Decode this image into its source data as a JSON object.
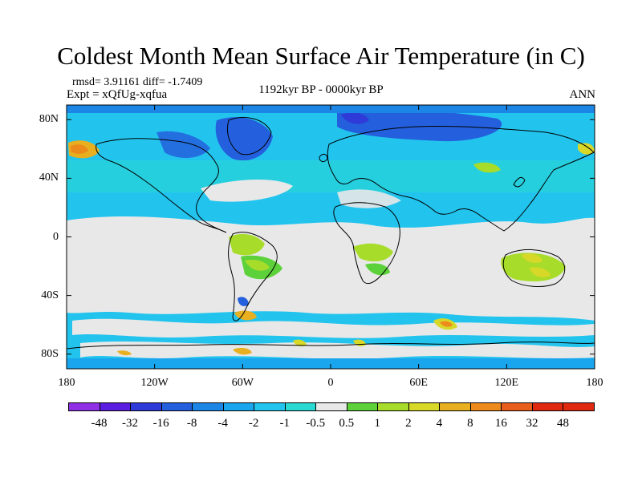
{
  "title": "Coldest Month Mean Surface Air Temperature (in C)",
  "stats": {
    "rmsd_line": "rmsd= 3.91161 diff= -1.7409",
    "experiment": "Expt = xQfUg-xqfua",
    "period": "1192kyr BP - 0000kyr BP",
    "season": "ANN"
  },
  "map": {
    "projection": "cylindrical equidistant",
    "lon_range": [
      -180,
      180
    ],
    "lat_range": [
      -90,
      90
    ],
    "lat_ticks": [
      {
        "value": 80,
        "label": "80N"
      },
      {
        "value": 40,
        "label": "40N"
      },
      {
        "value": 0,
        "label": "0"
      },
      {
        "value": -40,
        "label": "40S"
      },
      {
        "value": -80,
        "label": "80S"
      }
    ],
    "lon_ticks": [
      {
        "value": -180,
        "label": "180"
      },
      {
        "value": -120,
        "label": "120W"
      },
      {
        "value": -60,
        "label": "60W"
      },
      {
        "value": 0,
        "label": "0"
      },
      {
        "value": 60,
        "label": "60E"
      },
      {
        "value": 120,
        "label": "120E"
      },
      {
        "value": 180,
        "label": "180"
      }
    ]
  },
  "colorbar": {
    "colors": [
      "#8f2fe6",
      "#5a1ee0",
      "#2f3bd8",
      "#2460dd",
      "#1c86e6",
      "#1aa6ee",
      "#22c4ee",
      "#29d9d2",
      "#e8e8e8",
      "#5dd13a",
      "#a8dc2a",
      "#d8d828",
      "#e8b020",
      "#ec8a1c",
      "#ea5e1c",
      "#e02a10"
    ],
    "labels": [
      "-48",
      "-32",
      "-16",
      "-8",
      "-4",
      "-2",
      "-1",
      "-0.5",
      "0.5",
      "1",
      "2",
      "4",
      "8",
      "16",
      "32",
      "48"
    ]
  }
}
